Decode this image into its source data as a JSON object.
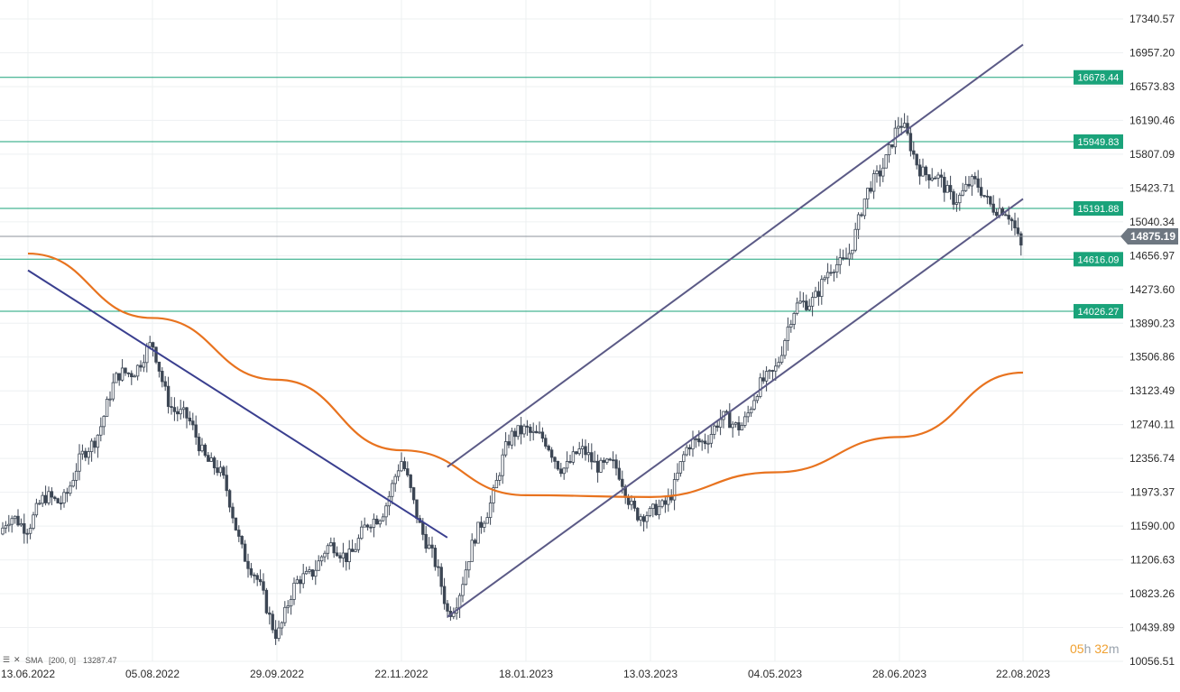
{
  "chart_data": {
    "type": "candlestick",
    "y_ticks": [
      "17340.57",
      "16957.20",
      "16573.83",
      "16190.46",
      "15807.09",
      "15423.71",
      "15040.34",
      "14656.97",
      "14273.60",
      "13890.23",
      "13506.86",
      "13123.49",
      "12740.11",
      "12356.74",
      "11973.37",
      "11590.00",
      "11206.63",
      "10823.26",
      "10439.89",
      "10056.51"
    ],
    "ylim": [
      10056.51,
      17340.57
    ],
    "x_ticks": [
      "13.06.2022",
      "05.08.2022",
      "29.09.2022",
      "22.11.2022",
      "18.01.2023",
      "13.03.2023",
      "04.05.2023",
      "28.06.2023",
      "22.08.2023"
    ],
    "horizontal_levels": [
      {
        "value": 16678.44,
        "label": "16678.44"
      },
      {
        "value": 15949.83,
        "label": "15949.83"
      },
      {
        "value": 15191.88,
        "label": "15191.88"
      },
      {
        "value": 14616.09,
        "label": "14616.09"
      },
      {
        "value": 14026.27,
        "label": "14026.27"
      }
    ],
    "last_price": {
      "value": 14875.19,
      "label": "14875.19"
    },
    "sma": {
      "label": "SMA",
      "params": "[200, 0]",
      "value": "13287.47"
    },
    "series_path": [
      [
        "13.06.2022",
        11500
      ],
      [
        "05.08.2022",
        13650
      ],
      [
        "29.09.2022",
        10550
      ],
      [
        "22.11.2022",
        12100
      ],
      [
        "13.12.2022",
        10750
      ],
      [
        "18.01.2023",
        12750
      ],
      [
        "13.03.2023",
        11800
      ],
      [
        "04.05.2023",
        13400
      ],
      [
        "28.06.2023",
        15950
      ],
      [
        "22.08.2023",
        14875
      ]
    ],
    "sma_path": [
      [
        "13.06.2022",
        14680
      ],
      [
        "05.08.2022",
        13950
      ],
      [
        "29.09.2022",
        13250
      ],
      [
        "22.11.2022",
        12450
      ],
      [
        "18.01.2023",
        11940
      ],
      [
        "13.03.2023",
        11920
      ],
      [
        "04.05.2023",
        12200
      ],
      [
        "28.06.2023",
        12600
      ],
      [
        "22.08.2023",
        13330
      ]
    ],
    "trendlines": [
      {
        "name": "downtrend",
        "from": [
          "13.06.2022",
          14490
        ],
        "to": [
          "13.12.2022",
          11460
        ]
      },
      {
        "name": "channel-upper",
        "from": [
          "13.12.2022",
          12260
        ],
        "to": [
          "22.08.2023",
          17050
        ]
      },
      {
        "name": "channel-lower",
        "from": [
          "13.12.2022",
          10560
        ],
        "to": [
          "22.08.2023",
          15300
        ]
      }
    ],
    "grid": true,
    "colors": {
      "candle": "#3c4654",
      "sma": "#e8731f",
      "level": "#1aa37a",
      "trend": "#3a3f8f",
      "channel": "#5b5a86",
      "last_price": "#6e7781",
      "timer": "#f0a030"
    }
  },
  "timer": {
    "hours": "05",
    "h_unit": "h",
    "minutes": "32",
    "m_unit": "m"
  }
}
